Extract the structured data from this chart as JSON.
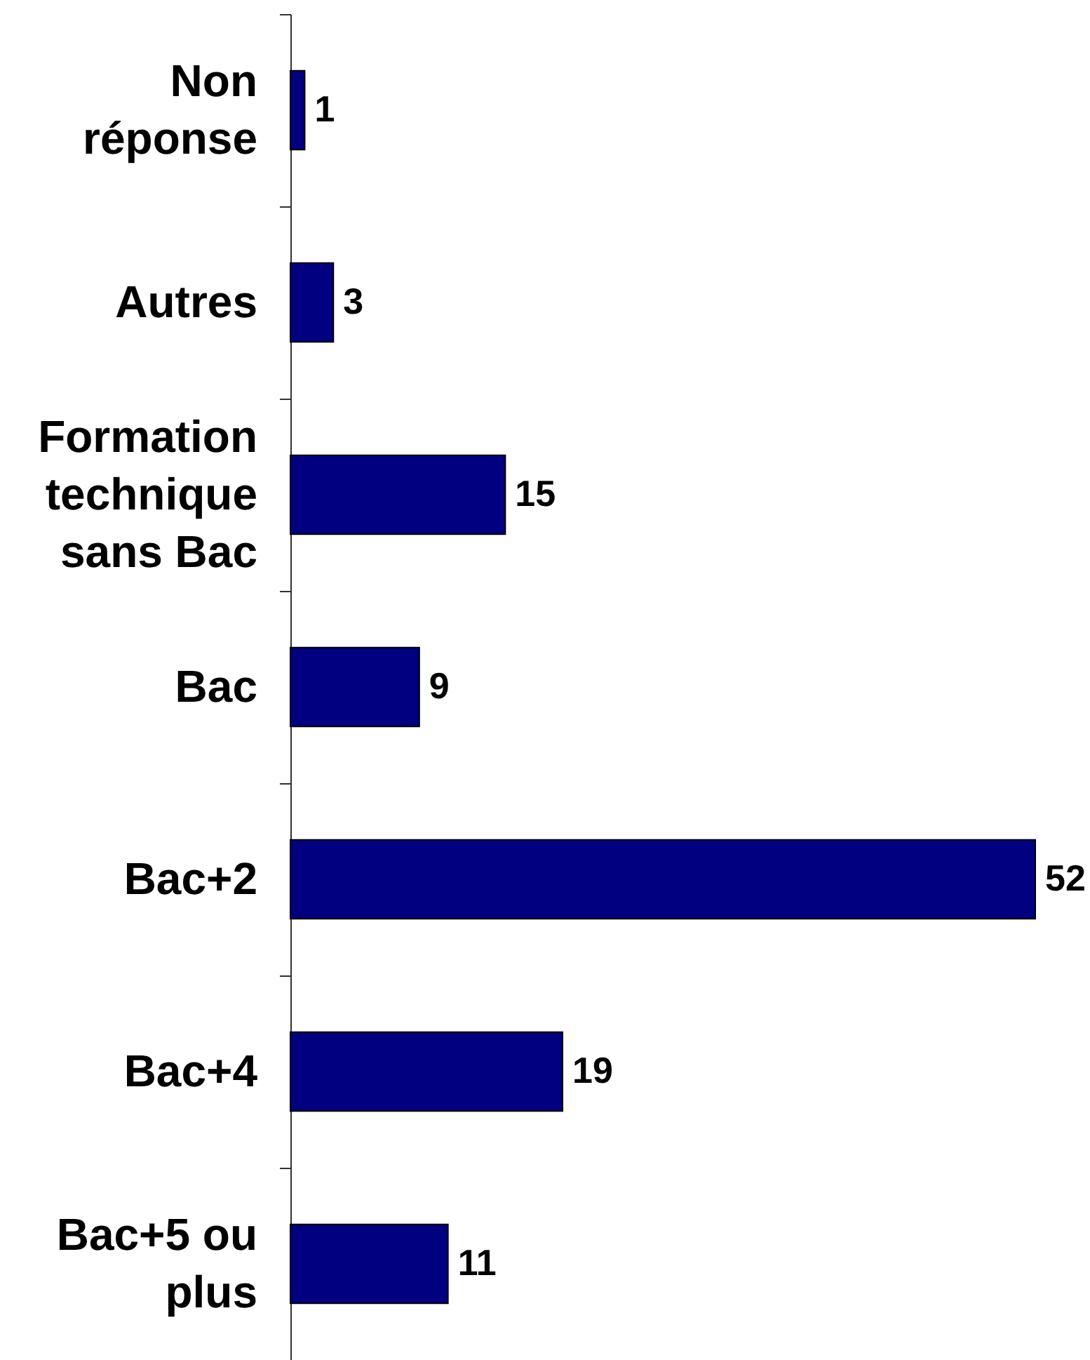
{
  "chart_data": {
    "type": "bar",
    "orientation": "horizontal",
    "categories": [
      "Non réponse",
      "Autres",
      "Formation technique sans Bac",
      "Bac",
      "Bac+2",
      "Bac+4",
      "Bac+5 ou plus"
    ],
    "values": [
      1,
      3,
      15,
      9,
      52,
      19,
      11
    ],
    "color": "#000080",
    "data_labels": true,
    "tick_labels": "y"
  }
}
